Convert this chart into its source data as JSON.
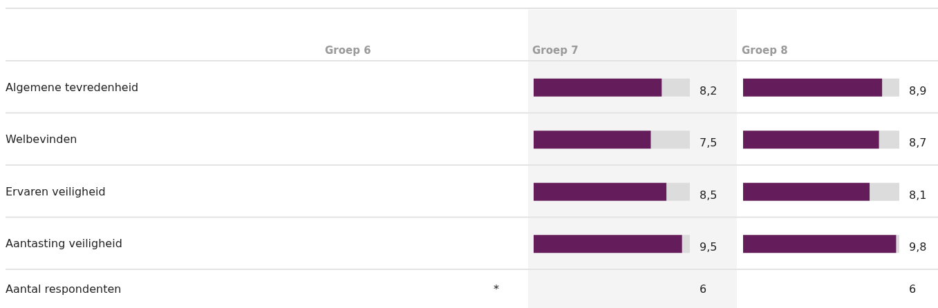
{
  "chart_data": [
    {
      "type": "other",
      "title": "Groep 6",
      "annotations": [
        "Aantal respondenten",
        "*"
      ]
    },
    {
      "type": "bar",
      "orientation": "horizontal",
      "title": "Groep 7",
      "categories": [
        "Algemene tevredenheid",
        "Welbevinden",
        "Ervaren veiligheid",
        "Aantasting veiligheid"
      ],
      "values": [
        8.2,
        7.5,
        8.5,
        9.5
      ],
      "value_labels": [
        "8,2",
        "7,5",
        "8,5",
        "9,5"
      ],
      "color": "#651c5a",
      "xlim": [
        0,
        10
      ],
      "tick_labels": "y",
      "annotations": [
        "6"
      ]
    },
    {
      "type": "bar",
      "orientation": "horizontal",
      "title": "Groep 8",
      "categories": [
        null,
        null,
        null,
        null
      ],
      "values": [
        8.9,
        8.7,
        8.1,
        9.8
      ],
      "value_labels": [
        "8,9",
        "8,7",
        "8,1",
        "9,8"
      ],
      "color": "#651c5a",
      "xlim": [
        0,
        10
      ],
      "annotations": [
        "6"
      ]
    }
  ]
}
